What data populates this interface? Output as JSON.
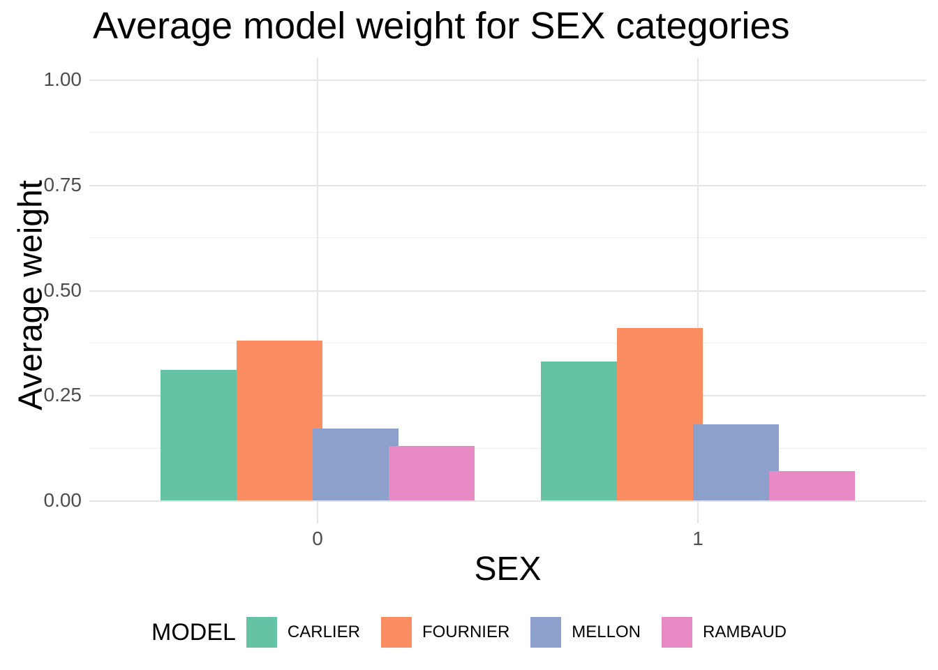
{
  "chart_data": {
    "type": "bar",
    "title": "Average model weight for SEX categories",
    "xlabel": "SEX",
    "ylabel": "Average weight",
    "categories": [
      "0",
      "1"
    ],
    "series": [
      {
        "name": "CARLIER",
        "color": "#66C2A5",
        "values": [
          0.31,
          0.33
        ]
      },
      {
        "name": "FOURNIER",
        "color": "#FC8D62",
        "values": [
          0.38,
          0.41
        ]
      },
      {
        "name": "MELLON",
        "color": "#8DA0CB",
        "values": [
          0.17,
          0.18
        ]
      },
      {
        "name": "RAMBAUD",
        "color": "#E78AC3",
        "values": [
          0.13,
          0.07
        ]
      }
    ],
    "ylim": [
      0.0,
      1.0
    ],
    "yticks": [
      0.0,
      0.25,
      0.5,
      0.75,
      1.0
    ],
    "ytick_labels": [
      "0.00",
      "0.25",
      "0.50",
      "0.75",
      "1.00"
    ],
    "yticks_minor": [
      0.125,
      0.375,
      0.625,
      0.875
    ],
    "grid": "horizontal major+minor light gray, vertical major at category centers, white background",
    "legend_title": "MODEL",
    "legend_position": "bottom",
    "bar_layout": "dodged, bars slightly overlapping, later series drawn on top"
  }
}
